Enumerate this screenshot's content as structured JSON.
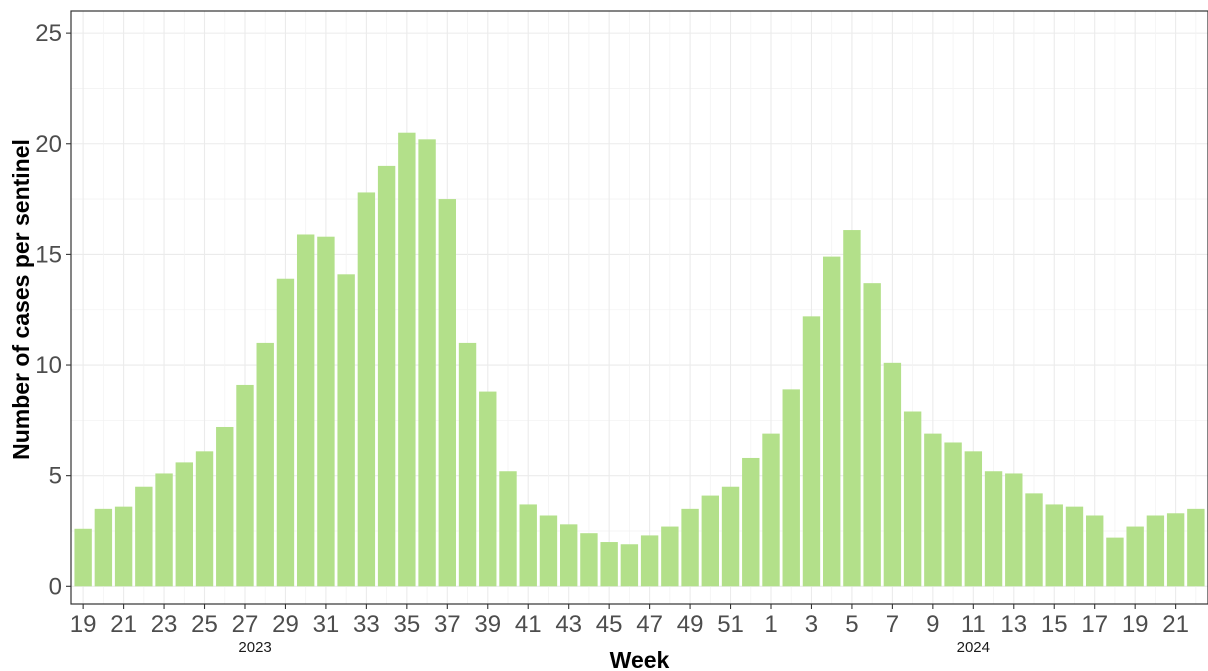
{
  "chart_data": {
    "type": "bar",
    "title": "",
    "xlabel": "Week",
    "ylabel": "Number of cases per sentinel",
    "ylim": [
      -0.8,
      26
    ],
    "yticks": [
      0,
      5,
      10,
      15,
      20,
      25
    ],
    "grid": true,
    "bar_color": "#b3e08a",
    "weeks": [
      19,
      20,
      21,
      22,
      23,
      24,
      25,
      26,
      27,
      28,
      29,
      30,
      31,
      32,
      33,
      34,
      35,
      36,
      37,
      38,
      39,
      40,
      41,
      42,
      43,
      44,
      45,
      46,
      47,
      48,
      49,
      50,
      51,
      52,
      1,
      2,
      3,
      4,
      5,
      6,
      7,
      8,
      9,
      10,
      11,
      12,
      13,
      14,
      15,
      16,
      17,
      18,
      19,
      20,
      21,
      22
    ],
    "values": [
      2.6,
      3.5,
      3.6,
      4.5,
      5.1,
      5.6,
      6.1,
      7.2,
      9.1,
      11.0,
      13.9,
      15.9,
      15.8,
      14.1,
      17.8,
      19.0,
      20.5,
      20.2,
      17.5,
      11.0,
      8.8,
      5.2,
      3.7,
      3.2,
      2.8,
      2.4,
      2.0,
      1.9,
      2.3,
      2.7,
      3.5,
      4.1,
      4.5,
      5.8,
      6.9,
      8.9,
      12.2,
      14.9,
      16.1,
      13.7,
      10.1,
      7.9,
      6.9,
      6.5,
      6.1,
      5.2,
      5.1,
      4.2,
      3.7,
      3.6,
      3.2,
      2.2,
      2.7,
      3.2,
      3.3,
      3.5
    ],
    "x_tick_labels": [
      "19",
      "21",
      "23",
      "25",
      "27",
      "29",
      "31",
      "33",
      "35",
      "37",
      "39",
      "41",
      "43",
      "45",
      "47",
      "49",
      "51",
      "1",
      "3",
      "5",
      "7",
      "9",
      "11",
      "13",
      "15",
      "17",
      "19",
      "21"
    ],
    "year_labels": [
      {
        "label": "2023",
        "center_week_index": 8.5
      },
      {
        "label": "2024",
        "center_week_index": 44
      }
    ]
  }
}
